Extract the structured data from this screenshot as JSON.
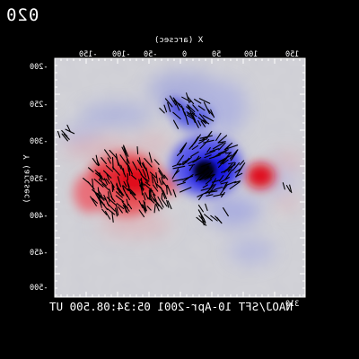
{
  "frame_number": "020",
  "x_axis_title": "X (arcsec)",
  "y_axis_title": "Y (arcsec)",
  "x_tick_labels": [
    "-150",
    "-100",
    "-50",
    "0",
    "50",
    "100",
    "150"
  ],
  "y_tick_labels": [
    "-500",
    "-450",
    "-400",
    "-350",
    "-300",
    "-250",
    "-200"
  ],
  "corner_label": "310",
  "caption": "NAOJ/SFT 10-Apr-2001 05:34:08.500 UT",
  "colors": {
    "background": "#000000",
    "field_neutral": "#d2d2d6",
    "positive_polarity": "#e0001a",
    "negative_polarity": "#1010e0",
    "vectors": "#000000",
    "text": "#ffffff"
  }
}
